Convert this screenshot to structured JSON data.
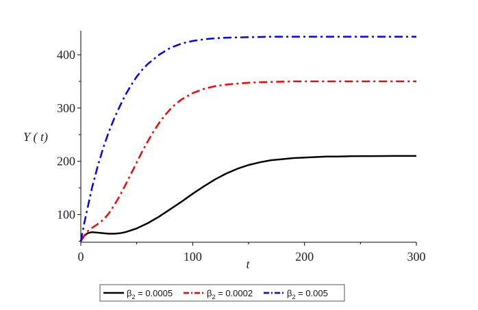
{
  "chart_data": {
    "type": "line",
    "title": "",
    "xlabel": "t",
    "ylabel": "Y ( t)",
    "xlim": [
      0,
      300
    ],
    "ylim": [
      48,
      445
    ],
    "x_ticks": [
      0,
      100,
      200,
      300
    ],
    "y_ticks": [
      100,
      200,
      300,
      400
    ],
    "grid": false,
    "legend_position": "bottom",
    "series": [
      {
        "name": "β2 = 0.0005",
        "color": "#000000",
        "dash": "solid",
        "x": [
          0,
          3,
          6,
          10,
          15,
          20,
          25,
          30,
          35,
          40,
          50,
          60,
          70,
          80,
          90,
          100,
          110,
          120,
          130,
          140,
          150,
          160,
          170,
          180,
          190,
          200,
          210,
          220,
          230,
          240,
          250,
          260,
          270,
          280,
          290,
          300
        ],
        "y": [
          50,
          60,
          65,
          67,
          66,
          65,
          64,
          64,
          65,
          67,
          74,
          84,
          96,
          110,
          124,
          139,
          153,
          166,
          177,
          186,
          193,
          198,
          202,
          204,
          206,
          207,
          208,
          209,
          209,
          209.5,
          209.7,
          209.8,
          209.9,
          210,
          210,
          210
        ]
      },
      {
        "name": "β2 = 0.0002",
        "color": "#ff0000",
        "dash": "dashdot",
        "x": [
          0,
          5,
          10,
          15,
          20,
          25,
          30,
          35,
          40,
          45,
          50,
          55,
          60,
          65,
          70,
          75,
          80,
          85,
          90,
          100,
          110,
          120,
          130,
          140,
          150,
          160,
          170,
          180,
          190,
          200,
          220,
          240,
          260,
          280,
          300
        ],
        "y": [
          50,
          67,
          75,
          82,
          90,
          102,
          118,
          136,
          156,
          177,
          198,
          219,
          238,
          256,
          272,
          286,
          298,
          308,
          316,
          328,
          336,
          341,
          344,
          346,
          347.5,
          348.5,
          349,
          349.5,
          350,
          350,
          350,
          350,
          350,
          350,
          350
        ]
      },
      {
        "name": "β2 = 0.005",
        "color": "#0000ff",
        "dash": "dashdot",
        "x": [
          0,
          3,
          6,
          10,
          15,
          20,
          25,
          30,
          35,
          40,
          45,
          50,
          55,
          60,
          70,
          80,
          90,
          100,
          110,
          120,
          130,
          140,
          150,
          160,
          170,
          180,
          200,
          220,
          240,
          260,
          280,
          300
        ],
        "y": [
          50,
          83,
          112,
          150,
          190,
          225,
          255,
          281,
          304,
          325,
          343,
          359,
          372,
          383,
          400,
          413,
          421,
          426,
          429,
          431,
          432,
          432.5,
          433,
          433.5,
          434,
          434,
          434,
          434,
          434,
          434,
          434,
          434
        ]
      }
    ]
  }
}
